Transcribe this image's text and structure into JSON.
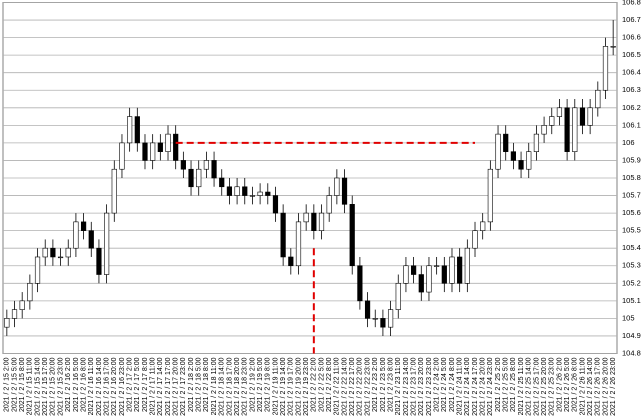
{
  "chart_data": {
    "type": "candlestick",
    "categories": [
      "2021 / 2 / 15 2:00",
      "2021 / 2 / 15 5:00",
      "2021 / 2 / 15 8:00",
      "2021 / 2 / 15 11:00",
      "2021 / 2 / 15 14:00",
      "2021 / 2 / 15 17:00",
      "2021 / 2 / 15 20:00",
      "2021 / 2 / 15 23:00",
      "2021 / 2 / 16 2:00",
      "2021 / 2 / 16 5:00",
      "2021 / 2 / 16 8:00",
      "2021 / 2 / 16 11:00",
      "2021 / 2 / 16 14:00",
      "2021 / 2 / 16 17:00",
      "2021 / 2 / 16 20:00",
      "2021 / 2 / 16 23:00",
      "2021 / 2 / 17 2:00",
      "2021 / 2 / 17 5:00",
      "2021 / 2 / 17 8:00",
      "2021 / 2 / 17 11:00",
      "2021 / 2 / 17 14:00",
      "2021 / 2 / 17 17:00",
      "2021 / 2 / 17 20:00",
      "2021 / 2 / 17 23:00",
      "2021 / 2 / 18 2:00",
      "2021 / 2 / 18 5:00",
      "2021 / 2 / 18 8:00",
      "2021 / 2 / 18 11:00",
      "2021 / 2 / 18 14:00",
      "2021 / 2 / 18 17:00",
      "2021 / 2 / 18 20:00",
      "2021 / 2 / 18 23:00",
      "2021 / 2 / 19 2:00",
      "2021 / 2 / 19 5:00",
      "2021 / 2 / 19 8:00",
      "2021 / 2 / 19 11:00",
      "2021 / 2 / 19 14:00",
      "2021 / 2 / 19 17:00",
      "2021 / 2 / 19 20:00",
      "2021 / 2 / 19 23:00",
      "2021 / 2 / 22 2:00",
      "2021 / 2 / 22 5:00",
      "2021 / 2 / 22 8:00",
      "2021 / 2 / 22 11:00",
      "2021 / 2 / 22 14:00",
      "2021 / 2 / 22 17:00",
      "2021 / 2 / 22 20:00",
      "2021 / 2 / 22 23:00",
      "2021 / 2 / 23 2:00",
      "2021 / 2 / 23 5:00",
      "2021 / 2 / 23 8:00",
      "2021 / 2 / 23 11:00",
      "2021 / 2 / 23 14:00",
      "2021 / 2 / 23 17:00",
      "2021 / 2 / 23 20:00",
      "2021 / 2 / 23 23:00",
      "2021 / 2 / 24 2:00",
      "2021 / 2 / 24 5:00",
      "2021 / 2 / 24 8:00",
      "2021 / 2 / 24 11:00",
      "2021 / 2 / 24 14:00",
      "2021 / 2 / 24 17:00",
      "2021 / 2 / 24 20:00",
      "2021 / 2 / 24 23:00",
      "2021 / 2 / 25 2:00",
      "2021 / 2 / 25 5:00",
      "2021 / 2 / 25 8:00",
      "2021 / 2 / 25 11:00",
      "2021 / 2 / 25 14:00",
      "2021 / 2 / 25 17:00",
      "2021 / 2 / 25 20:00",
      "2021 / 2 / 25 23:00",
      "2021 / 2 / 26 2:00",
      "2021 / 2 / 26 5:00",
      "2021 / 2 / 26 8:00",
      "2021 / 2 / 26 11:00",
      "2021 / 2 / 26 14:00",
      "2021 / 2 / 26 17:00",
      "2021 / 2 / 26 20:00",
      "2021 / 2 / 26 23:00"
    ],
    "open": [
      104.95,
      105.0,
      105.05,
      105.1,
      105.2,
      105.35,
      105.4,
      105.35,
      105.35,
      105.4,
      105.55,
      105.5,
      105.4,
      105.25,
      105.6,
      105.85,
      106.0,
      106.15,
      106.0,
      105.9,
      106.0,
      105.95,
      106.05,
      105.9,
      105.85,
      105.75,
      105.85,
      105.9,
      105.8,
      105.75,
      105.7,
      105.75,
      105.7,
      105.7,
      105.72,
      105.7,
      105.6,
      105.35,
      105.3,
      105.55,
      105.6,
      105.5,
      105.6,
      105.7,
      105.8,
      105.65,
      105.3,
      105.1,
      105.0,
      105.0,
      104.95,
      105.05,
      105.2,
      105.3,
      105.25,
      105.15,
      105.3,
      105.3,
      105.2,
      105.35,
      105.2,
      105.4,
      105.5,
      105.55,
      105.85,
      106.05,
      105.95,
      105.9,
      105.85,
      105.95,
      106.05,
      106.1,
      106.15,
      106.2,
      105.95,
      106.2,
      106.1,
      106.2,
      106.3,
      106.55
    ],
    "high": [
      105.05,
      105.1,
      105.15,
      105.25,
      105.4,
      105.45,
      105.45,
      105.4,
      105.45,
      105.6,
      105.6,
      105.55,
      105.45,
      105.65,
      105.9,
      106.05,
      106.2,
      106.2,
      106.05,
      106.05,
      106.05,
      106.1,
      106.1,
      105.95,
      105.9,
      105.9,
      105.95,
      105.95,
      105.85,
      105.8,
      105.8,
      105.8,
      105.75,
      105.77,
      105.77,
      105.75,
      105.65,
      105.4,
      105.6,
      105.65,
      105.65,
      105.65,
      105.75,
      105.85,
      105.85,
      105.7,
      105.35,
      105.15,
      105.05,
      105.05,
      105.1,
      105.25,
      105.35,
      105.35,
      105.3,
      105.35,
      105.35,
      105.35,
      105.4,
      105.4,
      105.45,
      105.55,
      105.6,
      105.9,
      106.1,
      106.1,
      106.0,
      105.95,
      106.0,
      106.1,
      106.15,
      106.2,
      106.25,
      106.25,
      106.25,
      106.25,
      106.25,
      106.35,
      106.6,
      106.7
    ],
    "low": [
      104.9,
      104.95,
      105.0,
      105.05,
      105.15,
      105.3,
      105.3,
      105.3,
      105.3,
      105.35,
      105.45,
      105.35,
      105.2,
      105.2,
      105.55,
      105.8,
      105.95,
      105.95,
      105.85,
      105.85,
      105.9,
      105.9,
      105.85,
      105.8,
      105.7,
      105.7,
      105.8,
      105.75,
      105.7,
      105.65,
      105.65,
      105.65,
      105.65,
      105.65,
      105.65,
      105.55,
      105.3,
      105.25,
      105.25,
      105.5,
      105.45,
      105.45,
      105.55,
      105.65,
      105.6,
      105.25,
      105.05,
      104.95,
      104.95,
      104.9,
      104.9,
      105.0,
      105.15,
      105.2,
      105.1,
      105.1,
      105.25,
      105.15,
      105.15,
      105.15,
      105.15,
      105.35,
      105.45,
      105.5,
      105.8,
      105.9,
      105.85,
      105.8,
      105.8,
      105.9,
      106.0,
      106.05,
      106.1,
      105.9,
      105.9,
      106.05,
      106.05,
      106.15,
      106.25,
      106.5
    ],
    "close": [
      105.0,
      105.05,
      105.1,
      105.2,
      105.35,
      105.4,
      105.35,
      105.35,
      105.4,
      105.55,
      105.5,
      105.4,
      105.25,
      105.6,
      105.85,
      106.0,
      106.15,
      106.0,
      105.9,
      106.0,
      105.95,
      106.05,
      105.9,
      105.85,
      105.75,
      105.85,
      105.9,
      105.8,
      105.75,
      105.7,
      105.75,
      105.7,
      105.7,
      105.72,
      105.7,
      105.6,
      105.35,
      105.3,
      105.55,
      105.6,
      105.5,
      105.6,
      105.7,
      105.8,
      105.65,
      105.3,
      105.1,
      105.0,
      105.0,
      104.95,
      105.05,
      105.2,
      105.3,
      105.25,
      105.15,
      105.3,
      105.3,
      105.2,
      105.35,
      105.2,
      105.4,
      105.5,
      105.55,
      105.85,
      106.05,
      105.95,
      105.9,
      105.85,
      105.95,
      106.05,
      106.1,
      106.15,
      106.2,
      105.95,
      106.2,
      106.1,
      106.2,
      106.3,
      106.55,
      106.55
    ],
    "up_color": "#ffffff",
    "down_color": "#000000",
    "edge_color": "#000000",
    "ylim": [
      104.8,
      106.8
    ],
    "yticks": [
      104.8,
      104.9,
      105,
      105.1,
      105.2,
      105.3,
      105.4,
      105.5,
      105.6,
      105.7,
      105.8,
      105.9,
      106,
      106.1,
      106.2,
      106.3,
      106.4,
      106.5,
      106.6,
      106.7,
      106.8
    ],
    "grid": true,
    "annotations": [
      {
        "type": "hline",
        "value": 106,
        "from": "2021 / 2 / 17 20:00",
        "to": "2021 / 2 / 24 17:00",
        "color": "#e00000"
      },
      {
        "type": "vline",
        "at": "2021 / 2 / 22 2:00",
        "top": 105.4,
        "color": "#e00000"
      }
    ]
  }
}
